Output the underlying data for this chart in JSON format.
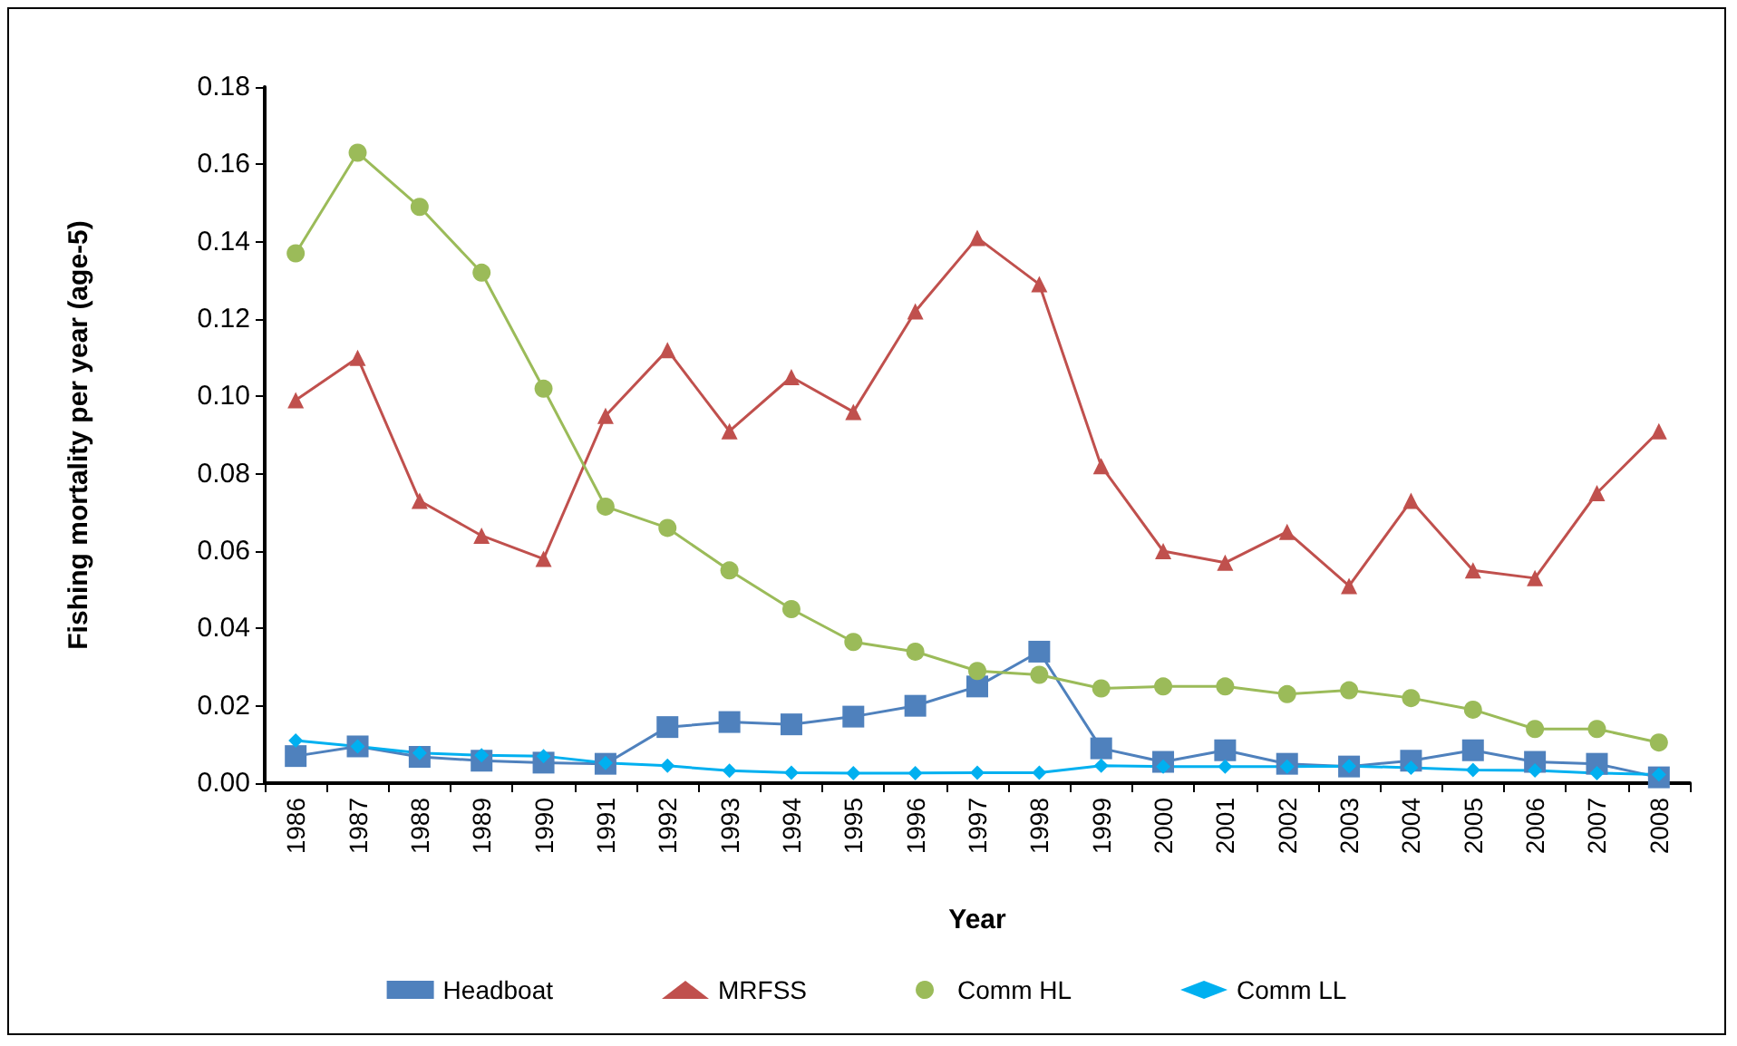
{
  "chart_data": {
    "type": "line",
    "xlabel": "Year",
    "ylabel": "Fishing mortality per year (age-5)",
    "categories": [
      "1986",
      "1987",
      "1988",
      "1989",
      "1990",
      "1991",
      "1992",
      "1993",
      "1994",
      "1995",
      "1996",
      "1997",
      "1998",
      "1999",
      "2000",
      "2001",
      "2002",
      "2003",
      "2004",
      "2005",
      "2006",
      "2007",
      "2008"
    ],
    "series": [
      {
        "name": "Headboat",
        "color": "#4f81bd",
        "marker": "square",
        "values": [
          0.007,
          0.0095,
          0.0068,
          0.0058,
          0.0053,
          0.005,
          0.0145,
          0.0158,
          0.0152,
          0.0172,
          0.02,
          0.025,
          0.034,
          0.009,
          0.0055,
          0.0085,
          0.005,
          0.0043,
          0.0058,
          0.0085,
          0.0055,
          0.005,
          0.0015
        ]
      },
      {
        "name": "MRFSS",
        "color": "#c0504d",
        "marker": "triangle",
        "values": [
          0.099,
          0.11,
          0.073,
          0.064,
          0.058,
          0.095,
          0.112,
          0.091,
          0.105,
          0.096,
          0.122,
          0.141,
          0.129,
          0.082,
          0.06,
          0.057,
          0.065,
          0.051,
          0.073,
          0.055,
          0.053,
          0.075,
          0.091
        ]
      },
      {
        "name": "Comm HL",
        "color": "#9bbb59",
        "marker": "circle",
        "values": [
          0.137,
          0.163,
          0.149,
          0.132,
          0.102,
          0.0715,
          0.066,
          0.055,
          0.045,
          0.0365,
          0.034,
          0.029,
          0.028,
          0.0245,
          0.025,
          0.025,
          0.023,
          0.024,
          0.022,
          0.019,
          0.014,
          0.014,
          0.0105
        ]
      },
      {
        "name": "Comm LL",
        "color": "#00b0f0",
        "marker": "diamond",
        "values": [
          0.011,
          0.0095,
          0.0078,
          0.0072,
          0.007,
          0.0052,
          0.0045,
          0.0032,
          0.0027,
          0.0026,
          0.0026,
          0.0027,
          0.0027,
          0.0045,
          0.0043,
          0.0043,
          0.0043,
          0.0044,
          0.004,
          0.0034,
          0.0033,
          0.0026,
          0.0022
        ]
      }
    ],
    "ylim": [
      0,
      0.18
    ],
    "yticks": [
      {
        "value": 0,
        "label": "0.00"
      },
      {
        "value": 0.02,
        "label": "0.02"
      },
      {
        "value": 0.04,
        "label": "0.04"
      },
      {
        "value": 0.06,
        "label": "0.06"
      },
      {
        "value": 0.08,
        "label": "0.08"
      },
      {
        "value": 0.1,
        "label": "0.10"
      },
      {
        "value": 0.12,
        "label": "0.12"
      },
      {
        "value": 0.14,
        "label": "0.14"
      },
      {
        "value": 0.16,
        "label": "0.16"
      },
      {
        "value": 0.18,
        "label": "0.18"
      }
    ],
    "grid": false,
    "legend": "bottom"
  }
}
